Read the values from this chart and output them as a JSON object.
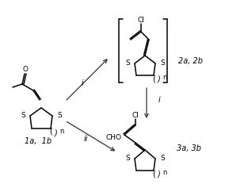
{
  "bg_color": "#ffffff",
  "line_color": "#000000",
  "line_width": 1.1,
  "arrow_color": "#333333",
  "label_1a1b": "1a,  1b",
  "label_2a2b": "2a, 2b",
  "label_3a3b": "3a, 3b",
  "label_i_upper": "i",
  "label_i_lower": "i",
  "label_ii": "ii",
  "label_Cl_upper": "Cl",
  "label_Cl_lower": "Cl",
  "label_CHO": "CHO",
  "label_O": "O",
  "figsize": [
    2.84,
    2.37
  ],
  "dpi": 100
}
